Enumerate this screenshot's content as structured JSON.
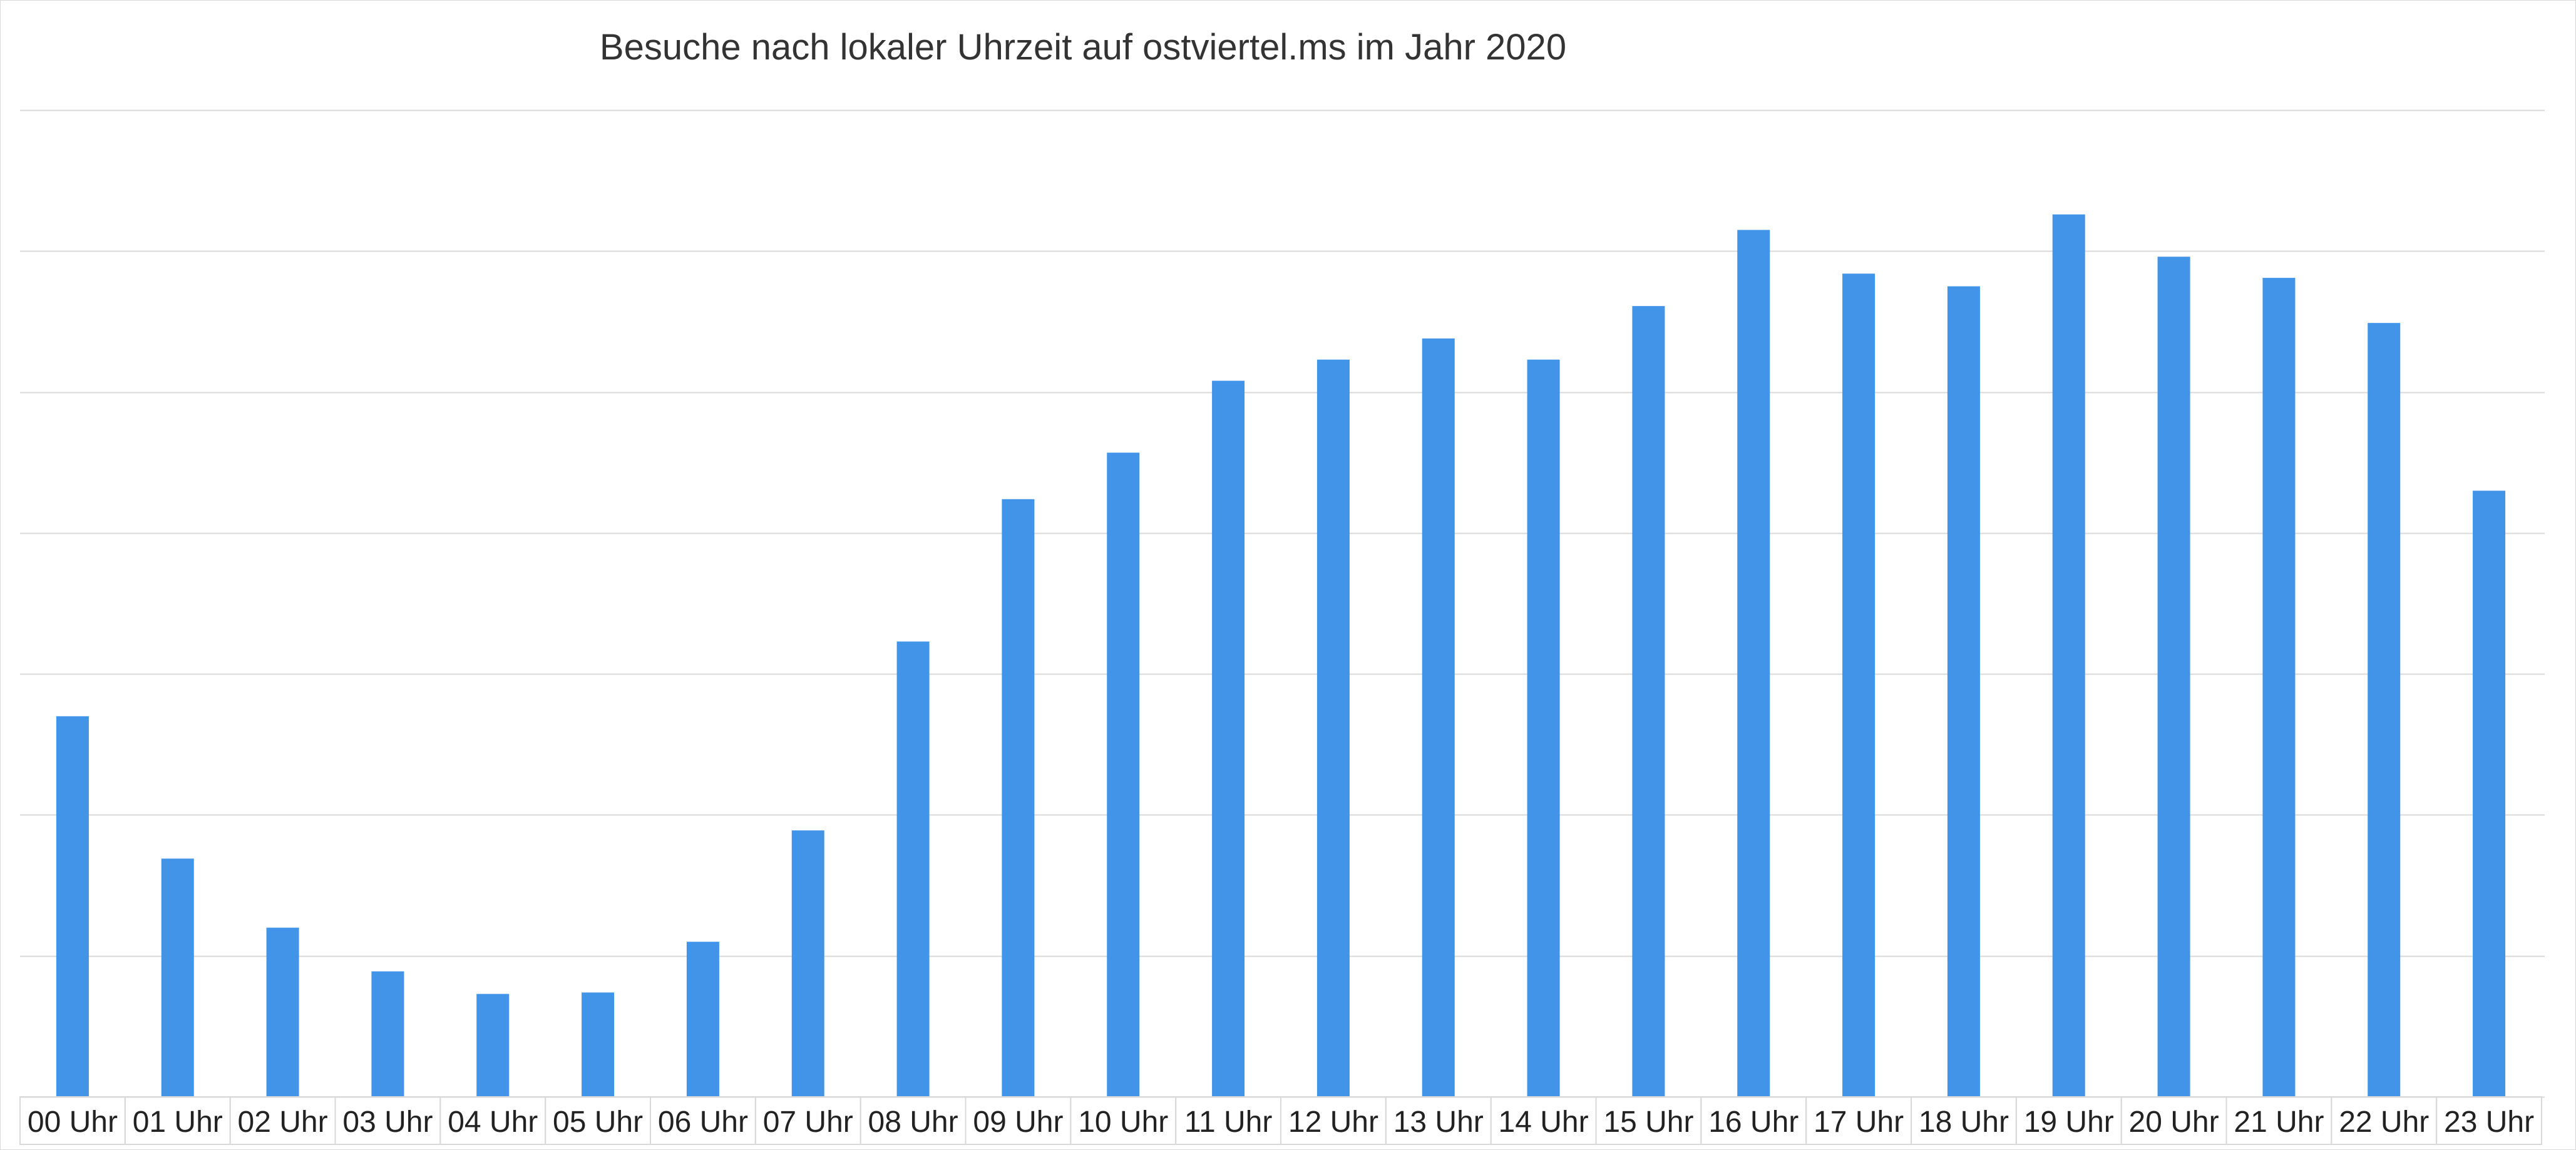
{
  "chart_data": {
    "type": "bar",
    "title": "Besuche nach lokaler Uhrzeit auf ostviertel.ms im Jahr 2020",
    "xlabel": "",
    "ylabel": "",
    "categories": [
      "00 Uhr",
      "01 Uhr",
      "02 Uhr",
      "03 Uhr",
      "04 Uhr",
      "05 Uhr",
      "06 Uhr",
      "07 Uhr",
      "08 Uhr",
      "09 Uhr",
      "10 Uhr",
      "11 Uhr",
      "12 Uhr",
      "13 Uhr",
      "14 Uhr",
      "15 Uhr",
      "16 Uhr",
      "17 Uhr",
      "18 Uhr",
      "19 Uhr",
      "20 Uhr",
      "21 Uhr",
      "22 Uhr",
      "23 Uhr"
    ],
    "values": [
      2.7,
      1.69,
      1.2,
      0.89,
      0.73,
      0.74,
      1.1,
      1.89,
      3.23,
      4.24,
      4.57,
      5.08,
      5.23,
      5.38,
      5.23,
      5.61,
      6.15,
      5.84,
      5.75,
      6.26,
      5.96,
      5.81,
      5.49,
      4.3
    ],
    "ylim": [
      0,
      7
    ],
    "grid": true,
    "legend": "none",
    "colors": {
      "bar": "#4194e8",
      "grid": "#d9d9d9",
      "text": "#222222",
      "title": "#333333"
    }
  }
}
